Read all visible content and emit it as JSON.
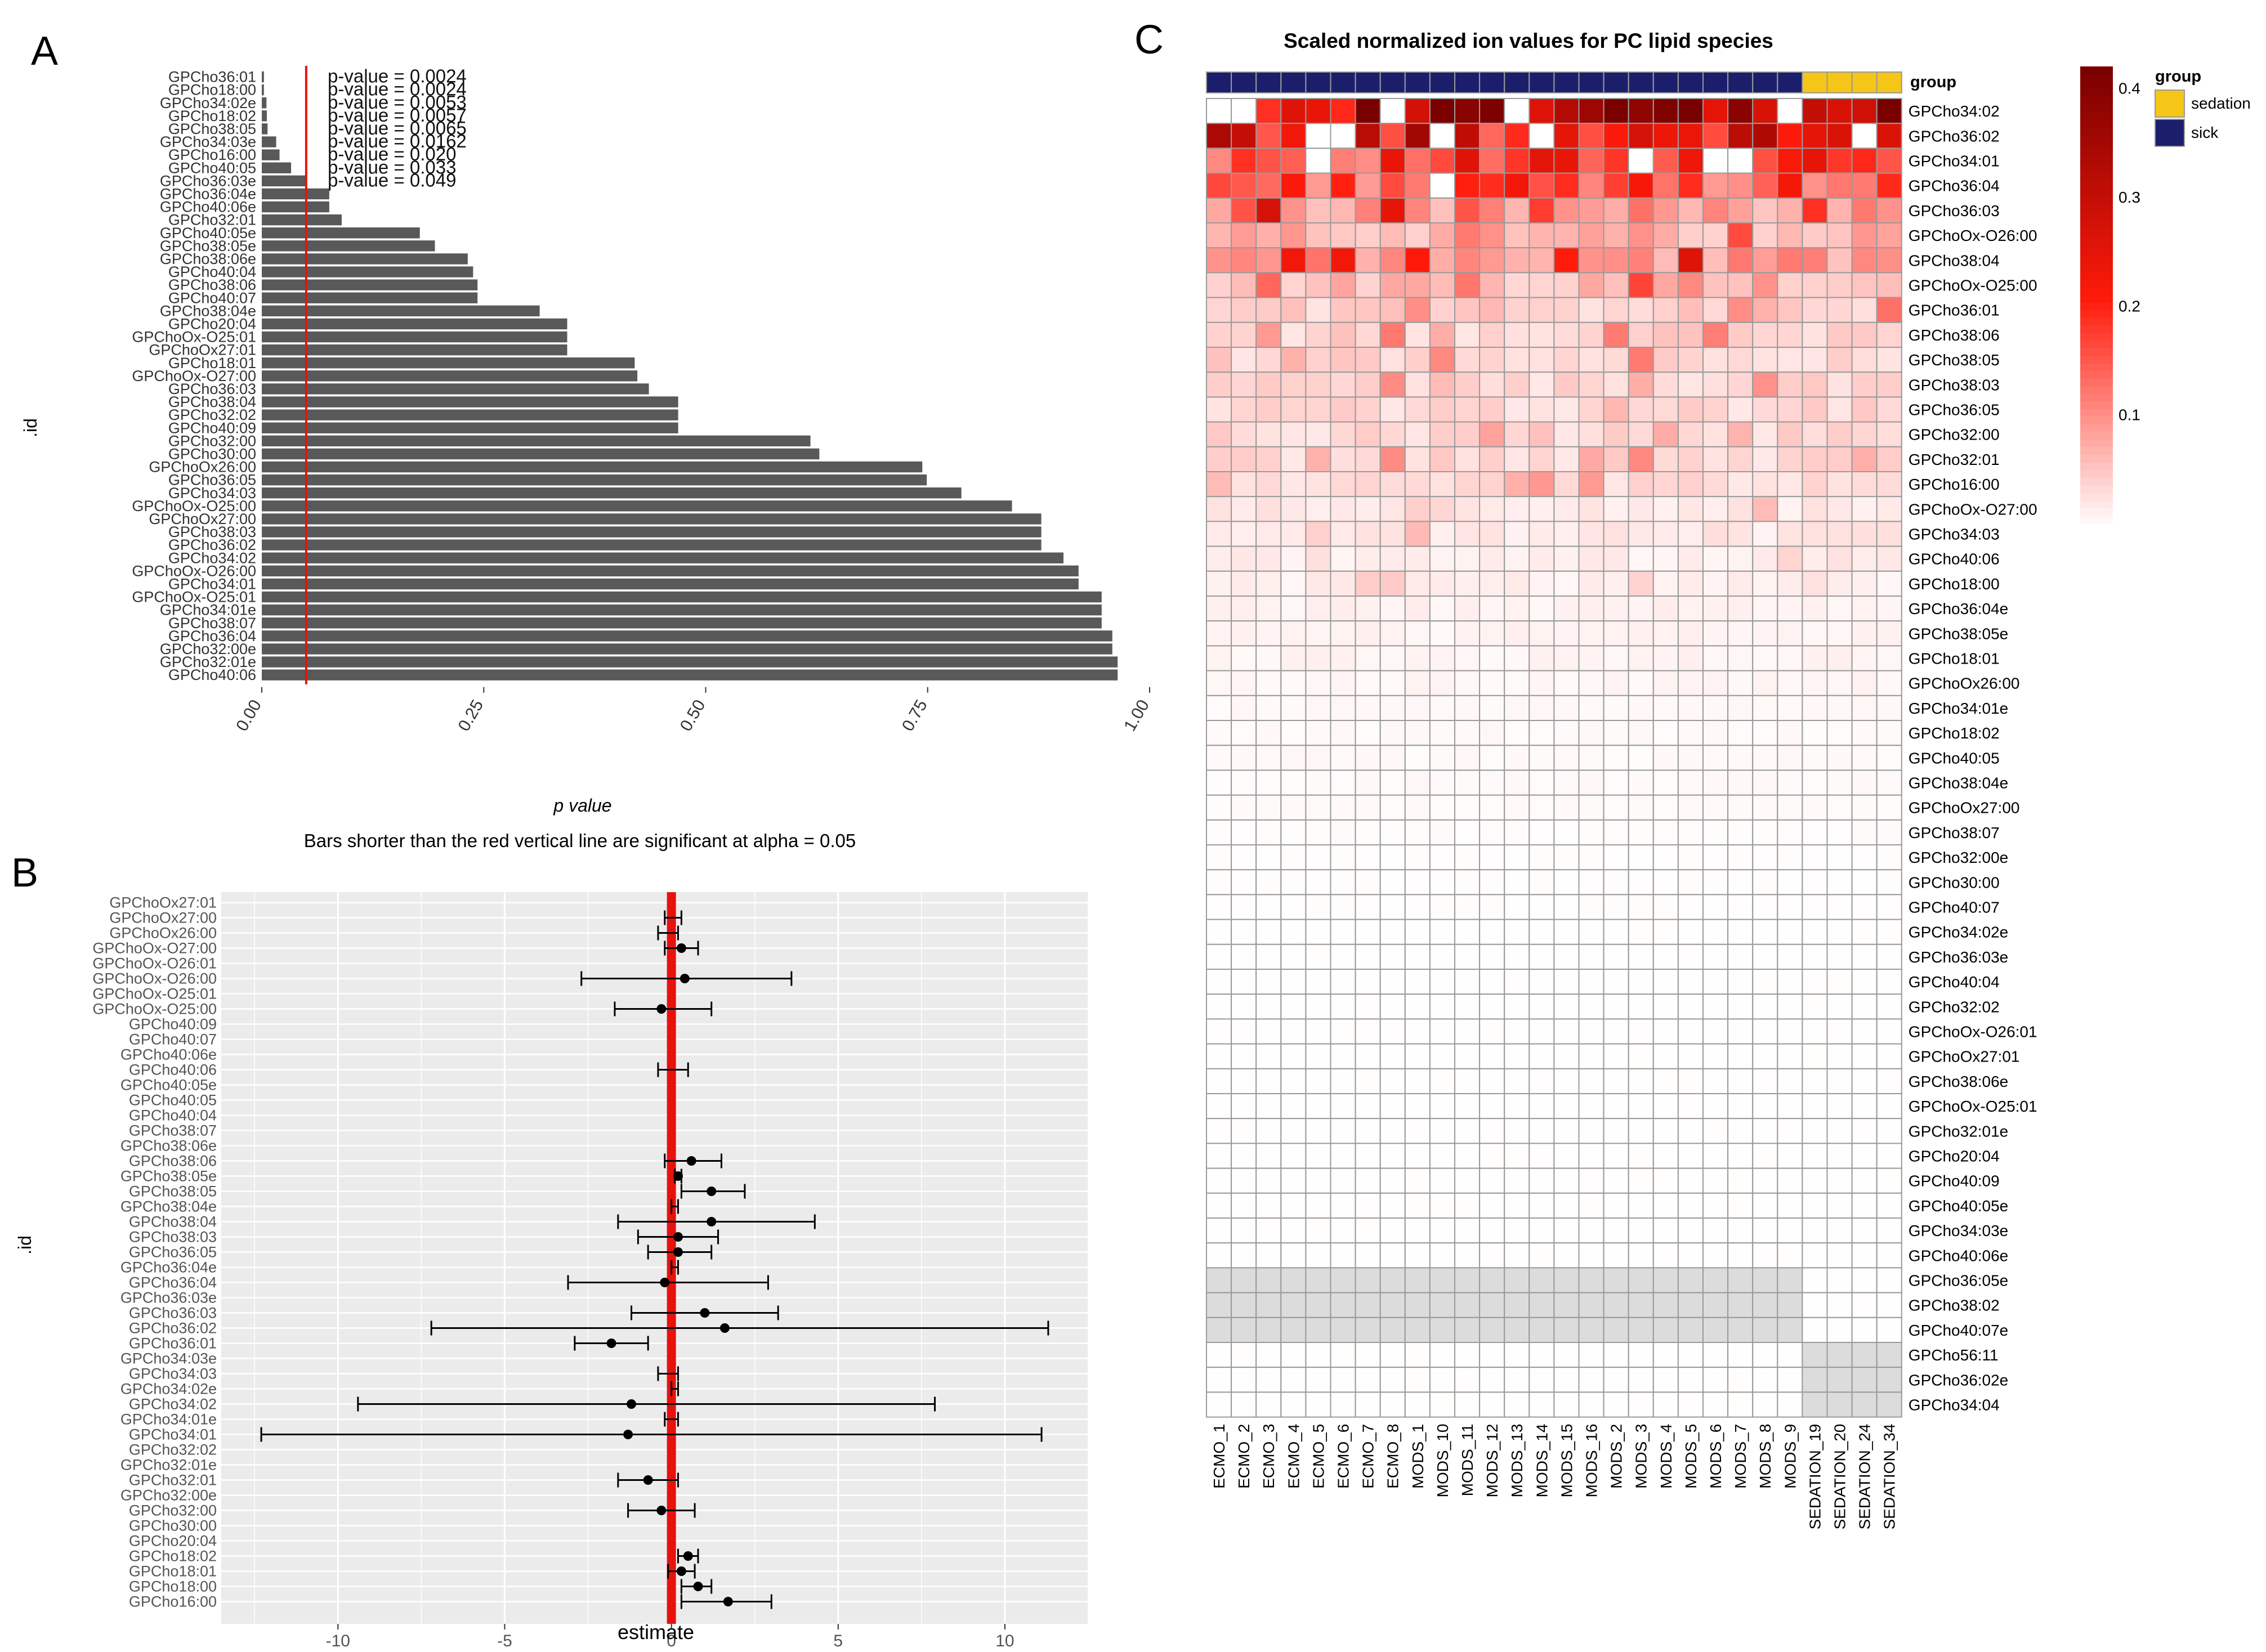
{
  "panel_labels": {
    "a": "A",
    "b": "B",
    "c": "C"
  },
  "colors": {
    "bar": "#595959",
    "sig_line": "#e8120c",
    "grid_bg": "#ebebeb",
    "sick": "#1b1f6b",
    "sedation": "#f5c518",
    "heat_high": "#7a0000",
    "heat_mid": "#ff1a0a",
    "heat_low": "#ffffff",
    "na": "#dcdcdc"
  },
  "chart_data": [
    {
      "type": "bar",
      "orientation": "horizontal",
      "ylabel": ".id",
      "xlabel": "p value",
      "caption": "Bars shorter than the red vertical line are significant at alpha = 0.05",
      "xlim": [
        0,
        1
      ],
      "xticks": [
        "0.00",
        "0.25",
        "0.50",
        "0.75",
        "1.00"
      ],
      "threshold": 0.05,
      "categories": [
        "GPCho36:01",
        "GPCho18:00",
        "GPCho34:02e",
        "GPCho18:02",
        "GPCho38:05",
        "GPCho34:03e",
        "GPCho16:00",
        "GPCho40:05",
        "GPCho36:03e",
        "GPCho36:04e",
        "GPCho40:06e",
        "GPCho32:01",
        "GPCho40:05e",
        "GPCho38:05e",
        "GPCho38:06e",
        "GPCho40:04",
        "GPCho38:06",
        "GPCho40:07",
        "GPCho38:04e",
        "GPCho20:04",
        "GPChoOx-O25:01",
        "GPChoOx27:01",
        "GPCho18:01",
        "GPChoOx-O27:00",
        "GPCho36:03",
        "GPCho38:04",
        "GPCho32:02",
        "GPCho40:09",
        "GPCho32:00",
        "GPCho30:00",
        "GPChoOx26:00",
        "GPCho36:05",
        "GPCho34:03",
        "GPChoOx-O25:00",
        "GPChoOx27:00",
        "GPCho38:03",
        "GPCho36:02",
        "GPCho34:02",
        "GPChoOx-O26:00",
        "GPCho34:01",
        "GPChoOx-O25:01",
        "GPCho34:01e",
        "GPCho38:07",
        "GPCho36:04",
        "GPCho32:00e",
        "GPCho32:01e",
        "GPCho40:06"
      ],
      "values": [
        0.0024,
        0.0024,
        0.0053,
        0.0057,
        0.0065,
        0.0162,
        0.02,
        0.033,
        0.049,
        0.076,
        0.076,
        0.09,
        0.178,
        0.195,
        0.232,
        0.238,
        0.243,
        0.243,
        0.313,
        0.344,
        0.344,
        0.344,
        0.42,
        0.423,
        0.436,
        0.469,
        0.469,
        0.469,
        0.618,
        0.628,
        0.744,
        0.749,
        0.788,
        0.845,
        0.878,
        0.878,
        0.878,
        0.903,
        0.92,
        0.92,
        0.946,
        0.946,
        0.946,
        0.958,
        0.958,
        0.964,
        0.964
      ],
      "annotations": [
        "p-value = 0.0024",
        "p-value = 0.0024",
        "p-value = 0.0053",
        "p-value = 0.0057",
        "p-value = 0.0065",
        "p-value = 0.0162",
        "p-value = 0.020",
        "p-value = 0.033",
        "p-value = 0.049"
      ]
    },
    {
      "type": "scatter",
      "subtype": "forest_plot",
      "ylabel": ".id",
      "xlabel": "estimate",
      "xlim": [
        -13.5,
        12.5
      ],
      "xticks": [
        "-10",
        "-5",
        "0",
        "5",
        "10"
      ],
      "categories": [
        "GPChoOx27:01",
        "GPChoOx27:00",
        "GPChoOx26:00",
        "GPChoOx-O27:00",
        "GPChoOx-O26:01",
        "GPChoOx-O26:00",
        "GPChoOx-O25:01",
        "GPChoOx-O25:00",
        "GPCho40:09",
        "GPCho40:07",
        "GPCho40:06e",
        "GPCho40:06",
        "GPCho40:05e",
        "GPCho40:05",
        "GPCho40:04",
        "GPCho38:07",
        "GPCho38:06e",
        "GPCho38:06",
        "GPCho38:05e",
        "GPCho38:05",
        "GPCho38:04e",
        "GPCho38:04",
        "GPCho38:03",
        "GPCho36:05",
        "GPCho36:04e",
        "GPCho36:04",
        "GPCho36:03e",
        "GPCho36:03",
        "GPCho36:02",
        "GPCho36:01",
        "GPCho34:03e",
        "GPCho34:03",
        "GPCho34:02e",
        "GPCho34:02",
        "GPCho34:01e",
        "GPCho34:01",
        "GPCho32:02",
        "GPCho32:01e",
        "GPCho32:01",
        "GPCho32:00e",
        "GPCho32:00",
        "GPCho30:00",
        "GPCho20:04",
        "GPCho18:02",
        "GPCho18:01",
        "GPCho18:00",
        "GPCho16:00"
      ],
      "estimate": [
        0,
        0,
        -0.1,
        0.3,
        0,
        0.4,
        0,
        -0.3,
        0,
        0,
        0,
        0,
        0,
        0,
        0,
        0,
        0,
        0.6,
        0.2,
        1.2,
        0.1,
        1.2,
        0.2,
        0.2,
        0.1,
        -0.2,
        0,
        1.0,
        1.6,
        -1.8,
        0,
        -0.1,
        0.1,
        -1.2,
        0,
        -1.3,
        0,
        0,
        -0.7,
        0,
        -0.3,
        0,
        0,
        0.5,
        0.3,
        0.8,
        1.7
      ],
      "lower": [
        0,
        -0.2,
        -0.4,
        -0.2,
        0,
        -2.7,
        0,
        -1.7,
        0,
        0,
        0,
        -0.4,
        0,
        0,
        0,
        0,
        0,
        -0.2,
        0.1,
        0.3,
        0,
        -1.6,
        -1.0,
        -0.7,
        0,
        -3.1,
        0,
        -1.2,
        -7.2,
        -2.9,
        0,
        -0.4,
        0,
        -9.4,
        -0.2,
        -12.3,
        0,
        0,
        -1.6,
        0,
        -1.3,
        0,
        0,
        0.2,
        -0.1,
        0.3,
        0.3
      ],
      "upper": [
        0,
        0.3,
        0.2,
        0.8,
        0,
        3.6,
        0,
        1.2,
        0,
        0,
        0,
        0.5,
        0,
        0,
        0,
        0,
        0,
        1.5,
        0.3,
        2.2,
        0.2,
        4.3,
        1.4,
        1.2,
        0.2,
        2.9,
        0,
        3.2,
        11.3,
        -0.7,
        0,
        0.2,
        0.2,
        7.9,
        0.2,
        11.1,
        0,
        0,
        0.2,
        0,
        0.7,
        0,
        0,
        0.8,
        0.7,
        1.2,
        3.0
      ]
    },
    {
      "type": "heatmap",
      "title": "Scaled normalized ion values for PC lipid species",
      "columns": [
        "ECMO_1",
        "ECMO_2",
        "ECMO_3",
        "ECMO_4",
        "ECMO_5",
        "ECMO_6",
        "ECMO_7",
        "ECMO_8",
        "MODS_1",
        "MODS_10",
        "MODS_11",
        "MODS_12",
        "MODS_13",
        "MODS_14",
        "MODS_15",
        "MODS_16",
        "MODS_2",
        "MODS_3",
        "MODS_4",
        "MODS_5",
        "MODS_6",
        "MODS_7",
        "MODS_8",
        "MODS_9",
        "SEDATION_19",
        "SEDATION_20",
        "SEDATION_24",
        "SEDATION_34"
      ],
      "groups": [
        "sick",
        "sick",
        "sick",
        "sick",
        "sick",
        "sick",
        "sick",
        "sick",
        "sick",
        "sick",
        "sick",
        "sick",
        "sick",
        "sick",
        "sick",
        "sick",
        "sick",
        "sick",
        "sick",
        "sick",
        "sick",
        "sick",
        "sick",
        "sick",
        "sedation",
        "sedation",
        "sedation",
        "sedation"
      ],
      "group_label": "group",
      "legend_title": "group",
      "legend_groups": [
        "sedation",
        "sick"
      ],
      "colorbar_ticks": [
        "0.4",
        "0.3",
        "0.2",
        "0.1"
      ],
      "colorbar_range": [
        0,
        0.42
      ],
      "rows": [
        "GPCho34:02",
        "GPCho36:02",
        "GPCho34:01",
        "GPCho36:04",
        "GPCho36:03",
        "GPChoOx-O26:00",
        "GPCho38:04",
        "GPChoOx-O25:00",
        "GPCho36:01",
        "GPCho38:06",
        "GPCho38:05",
        "GPCho38:03",
        "GPCho36:05",
        "GPCho32:00",
        "GPCho32:01",
        "GPCho16:00",
        "GPChoOx-O27:00",
        "GPCho34:03",
        "GPCho40:06",
        "GPCho18:00",
        "GPCho36:04e",
        "GPCho38:05e",
        "GPCho18:01",
        "GPChoOx26:00",
        "GPCho34:01e",
        "GPCho18:02",
        "GPCho40:05",
        "GPCho38:04e",
        "GPChoOx27:00",
        "GPCho38:07",
        "GPCho32:00e",
        "GPCho30:00",
        "GPCho40:07",
        "GPCho34:02e",
        "GPCho36:03e",
        "GPCho40:04",
        "GPCho32:02",
        "GPChoOx-O26:01",
        "GPChoOx27:01",
        "GPCho38:06e",
        "GPChoOx-O25:01",
        "GPCho32:01e",
        "GPCho20:04",
        "GPCho40:09",
        "GPCho40:05e",
        "GPCho34:03e",
        "GPCho40:06e",
        "GPCho36:05e",
        "GPCho38:02",
        "GPCho40:07e",
        "GPCho56:11",
        "GPCho36:02e",
        "GPCho34:04"
      ],
      "row_base": [
        0.33,
        0.25,
        0.18,
        0.16,
        0.09,
        0.07,
        0.09,
        0.06,
        0.045,
        0.04,
        0.04,
        0.035,
        0.035,
        0.035,
        0.035,
        0.03,
        0.02,
        0.02,
        0.015,
        0.015,
        0.012,
        0.01,
        0.01,
        0.008,
        0.006,
        0.005,
        0.005,
        0.005,
        0.004,
        0.003,
        0.002,
        0.002,
        0.002,
        0.001,
        0.001,
        0.001,
        0.001,
        0.001,
        0.001,
        0.001,
        0.001,
        0.001,
        0.001,
        0.001,
        0.001,
        0.001,
        0.001,
        0.001,
        0.001,
        0.001,
        0.001,
        0.001,
        0.001
      ],
      "na_blocks": [
        {
          "rows": [
            "GPCho36:05e",
            "GPCho38:02",
            "GPCho40:07e"
          ],
          "group": "sick"
        },
        {
          "rows": [
            "GPCho56:11",
            "GPCho36:02e",
            "GPCho34:04"
          ],
          "group": "sedation"
        }
      ]
    }
  ]
}
